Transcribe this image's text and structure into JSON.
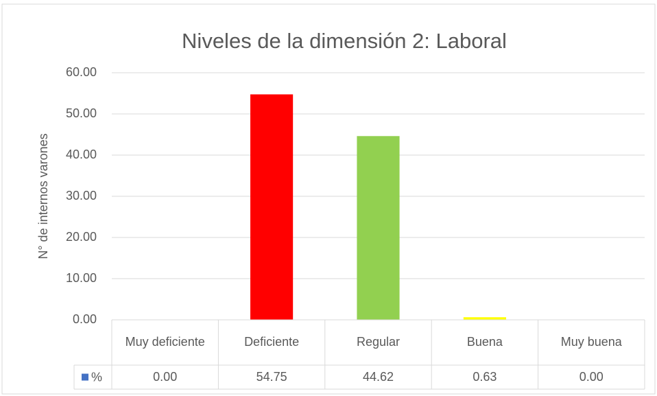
{
  "chart_data": {
    "type": "bar",
    "title": "Niveles de la dimensión 2: Laboral",
    "y_label": "N° de internos varones",
    "categories": [
      "Muy deficiente",
      "Deficiente",
      "Regular",
      "Buena",
      "Muy buena"
    ],
    "series": [
      {
        "name": "%",
        "color": "#4472c4",
        "values": [
          0,
          54.75,
          44.62,
          0.63,
          0
        ],
        "value_labels": [
          "0.00",
          "54.75",
          "44.62",
          "0.63",
          "0.00"
        ],
        "point_colors": [
          "#4472c4",
          "#ff0000",
          "#92d050",
          "#ffff00",
          "#4472c4"
        ]
      }
    ],
    "ylim": [
      0,
      60
    ],
    "yticks": [
      {
        "value": 0,
        "label": "0.00"
      },
      {
        "value": 10,
        "label": "10.00"
      },
      {
        "value": 20,
        "label": "20.00"
      },
      {
        "value": 30,
        "label": "30.00"
      },
      {
        "value": 40,
        "label": "40.00"
      },
      {
        "value": 50,
        "label": "50.00"
      },
      {
        "value": 60,
        "label": "60.00"
      }
    ],
    "grid": true,
    "data_table": true
  }
}
